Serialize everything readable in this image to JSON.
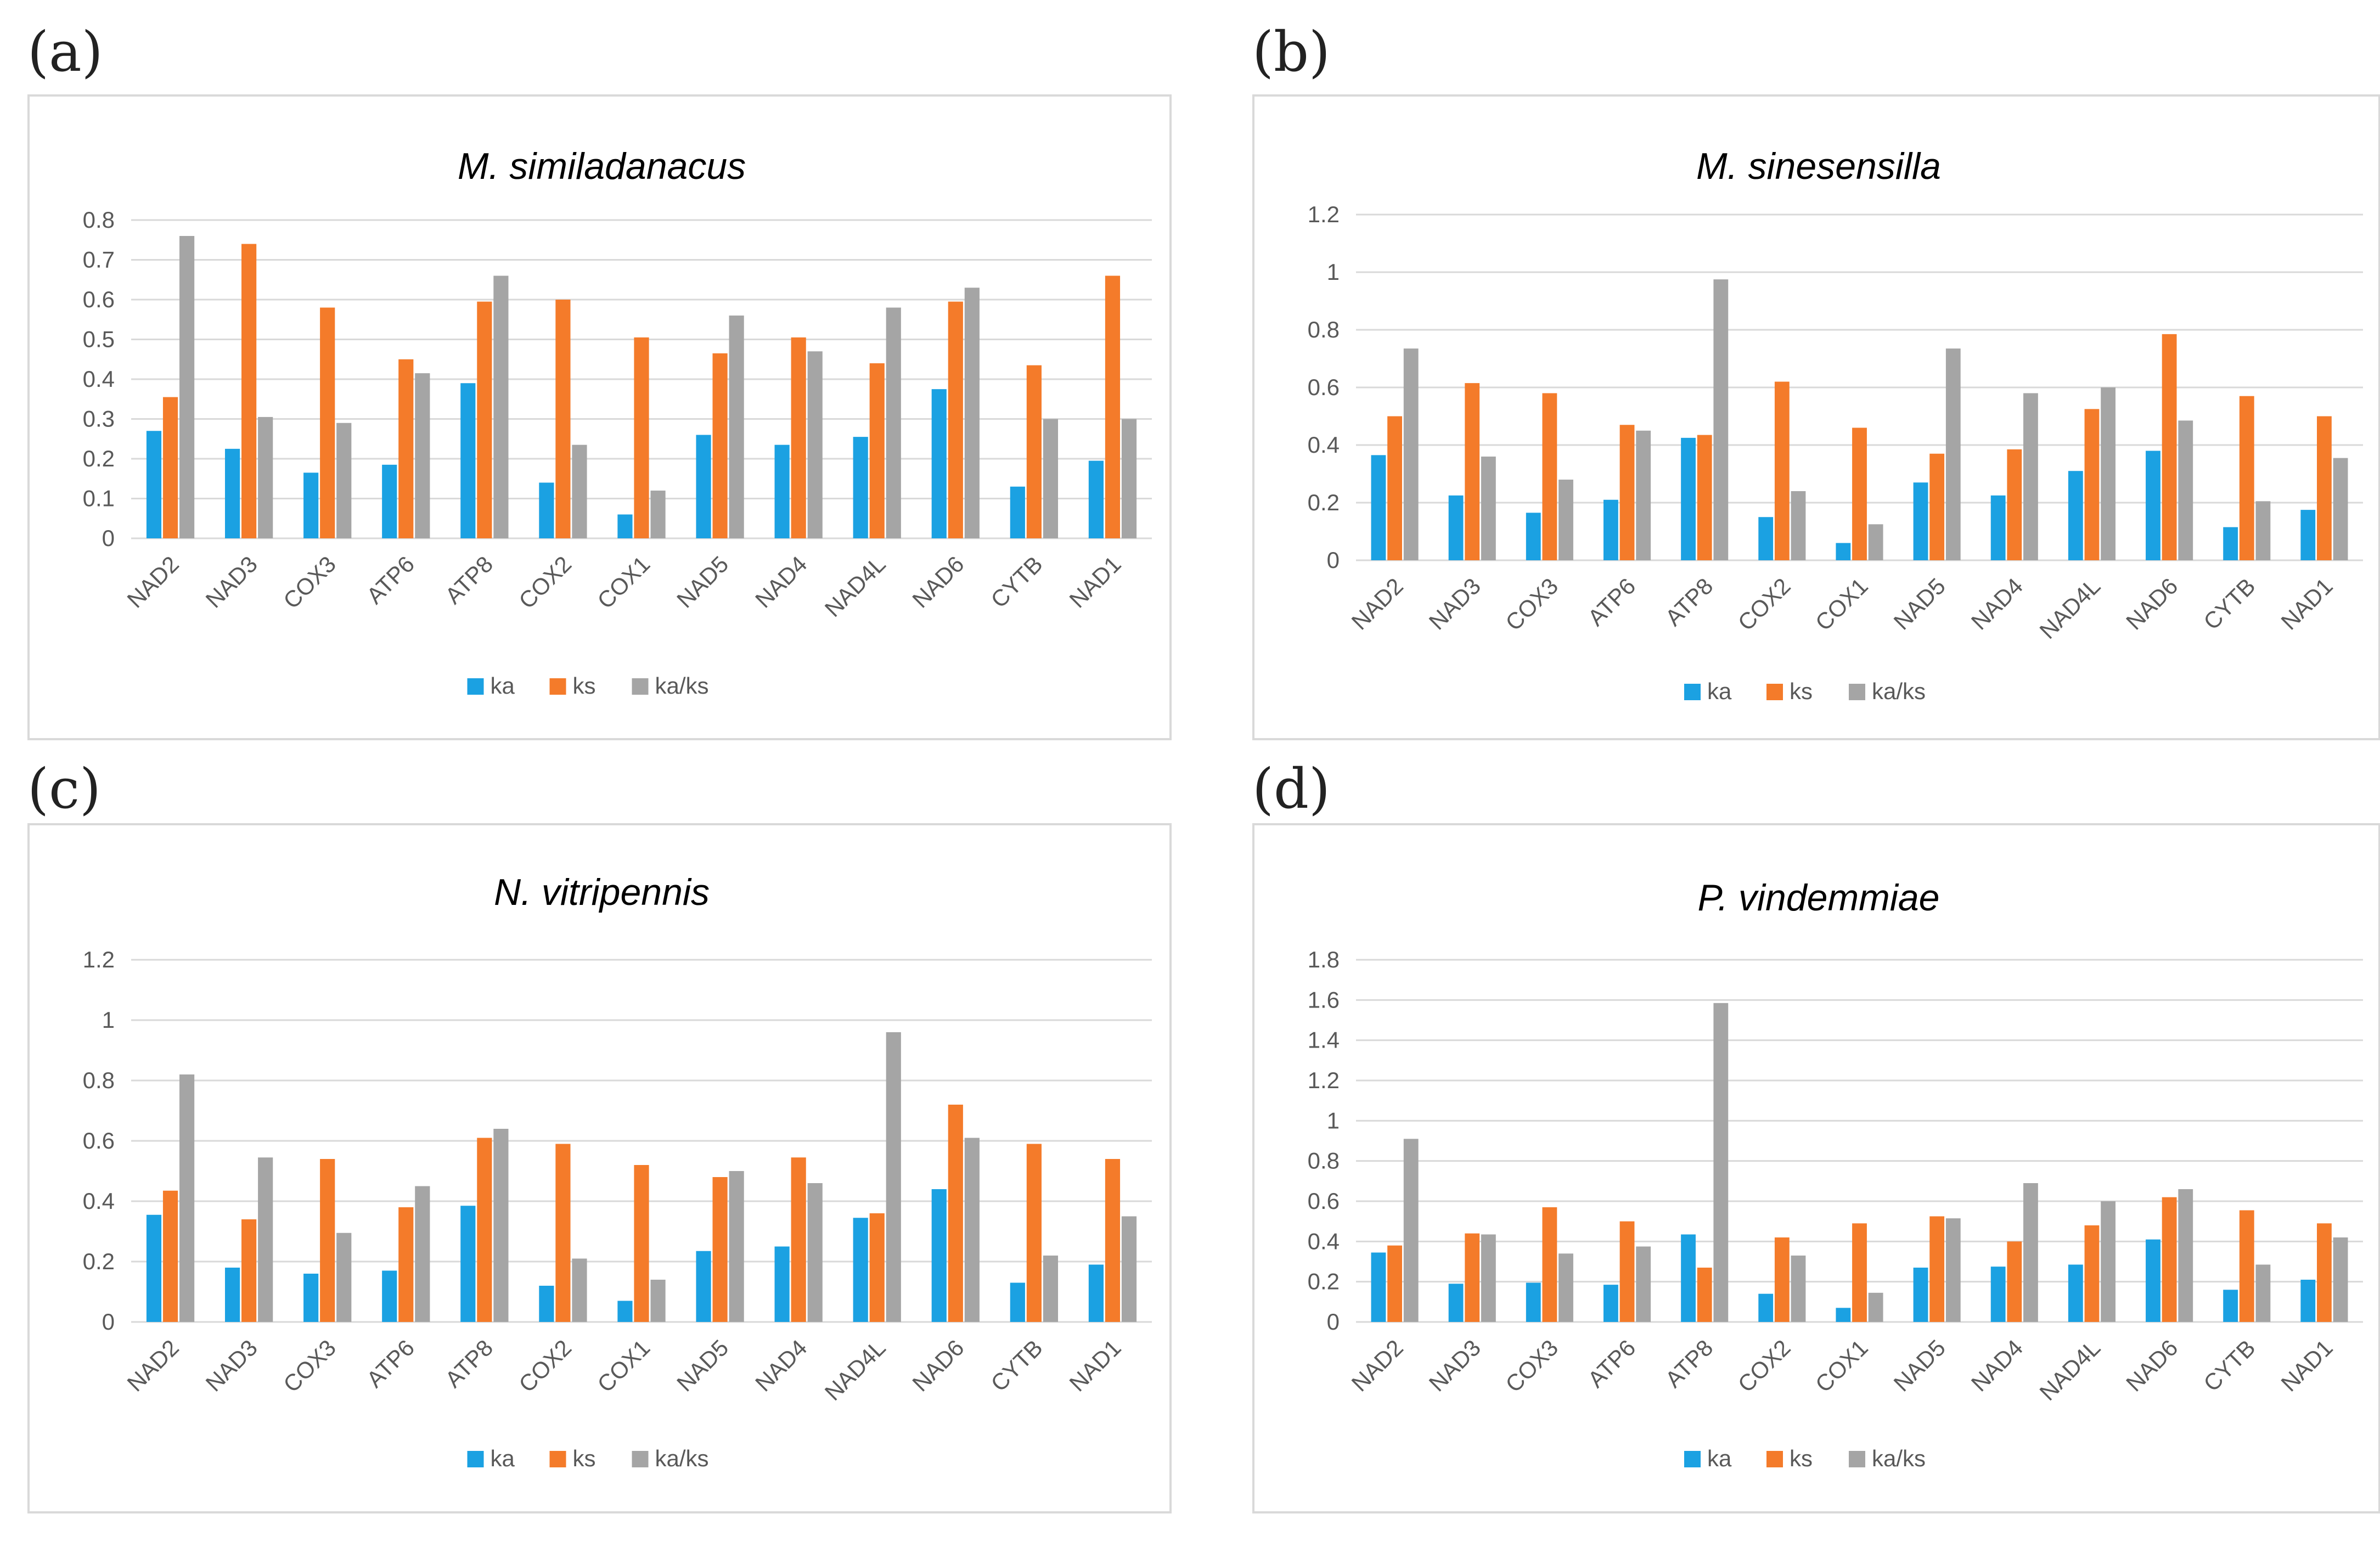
{
  "colors": {
    "ka": "#1ba1e2",
    "ks": "#f47b2a",
    "ratio": "#a5a5a5",
    "grid": "#d9d9d9",
    "text": "#595959",
    "title": "#000000"
  },
  "legend": [
    "ka",
    "ks",
    "ka/ks"
  ],
  "chart_data": [
    {
      "panel": "(a)",
      "type": "bar",
      "title": "M. similadanacus",
      "categories": [
        "NAD2",
        "NAD3",
        "COX3",
        "ATP6",
        "ATP8",
        "COX2",
        "COX1",
        "NAD5",
        "NAD4",
        "NAD4L",
        "NAD6",
        "CYTB",
        "NAD1"
      ],
      "yticks": [
        "0",
        "0.1",
        "0.2",
        "0.3",
        "0.4",
        "0.5",
        "0.6",
        "0.7",
        "0.8"
      ],
      "ylim": [
        0,
        0.8
      ],
      "series": [
        {
          "name": "ka",
          "values": [
            0.27,
            0.225,
            0.165,
            0.185,
            0.39,
            0.14,
            0.06,
            0.26,
            0.235,
            0.255,
            0.375,
            0.13,
            0.195
          ]
        },
        {
          "name": "ks",
          "values": [
            0.355,
            0.74,
            0.58,
            0.45,
            0.595,
            0.6,
            0.505,
            0.465,
            0.505,
            0.44,
            0.595,
            0.435,
            0.66
          ]
        },
        {
          "name": "ka/ks",
          "values": [
            0.76,
            0.305,
            0.29,
            0.415,
            0.66,
            0.235,
            0.12,
            0.56,
            0.47,
            0.58,
            0.63,
            0.3,
            0.3
          ]
        }
      ]
    },
    {
      "panel": "(b)",
      "type": "bar",
      "title": "M. sinesensilla",
      "categories": [
        "NAD2",
        "NAD3",
        "COX3",
        "ATP6",
        "ATP8",
        "COX2",
        "COX1",
        "NAD5",
        "NAD4",
        "NAD4L",
        "NAD6",
        "CYTB",
        "NAD1"
      ],
      "yticks": [
        "0",
        "0.2",
        "0.4",
        "0.6",
        "0.8",
        "1",
        "1.2"
      ],
      "ylim": [
        0,
        1.2
      ],
      "series": [
        {
          "name": "ka",
          "values": [
            0.365,
            0.225,
            0.165,
            0.21,
            0.425,
            0.15,
            0.06,
            0.27,
            0.225,
            0.31,
            0.38,
            0.115,
            0.175
          ]
        },
        {
          "name": "ks",
          "values": [
            0.5,
            0.615,
            0.58,
            0.47,
            0.435,
            0.62,
            0.46,
            0.37,
            0.385,
            0.525,
            0.785,
            0.57,
            0.5
          ]
        },
        {
          "name": "ka/ks",
          "values": [
            0.735,
            0.36,
            0.28,
            0.45,
            0.975,
            0.24,
            0.125,
            0.735,
            0.58,
            0.6,
            0.485,
            0.205,
            0.355
          ]
        }
      ]
    },
    {
      "panel": "(c)",
      "type": "bar",
      "title": "N. vitripennis",
      "categories": [
        "NAD2",
        "NAD3",
        "COX3",
        "ATP6",
        "ATP8",
        "COX2",
        "COX1",
        "NAD5",
        "NAD4",
        "NAD4L",
        "NAD6",
        "CYTB",
        "NAD1"
      ],
      "yticks": [
        "0",
        "0.2",
        "0.4",
        "0.6",
        "0.8",
        "1",
        "1.2"
      ],
      "ylim": [
        0,
        1.2
      ],
      "series": [
        {
          "name": "ka",
          "values": [
            0.355,
            0.18,
            0.16,
            0.17,
            0.385,
            0.12,
            0.07,
            0.235,
            0.25,
            0.345,
            0.44,
            0.13,
            0.19
          ]
        },
        {
          "name": "ks",
          "values": [
            0.435,
            0.34,
            0.54,
            0.38,
            0.61,
            0.59,
            0.52,
            0.48,
            0.545,
            0.36,
            0.72,
            0.59,
            0.54
          ]
        },
        {
          "name": "ka/ks",
          "values": [
            0.82,
            0.545,
            0.295,
            0.45,
            0.64,
            0.21,
            0.14,
            0.5,
            0.46,
            0.96,
            0.61,
            0.22,
            0.35
          ]
        }
      ]
    },
    {
      "panel": "(d)",
      "type": "bar",
      "title": "P. vindemmiae",
      "categories": [
        "NAD2",
        "NAD3",
        "COX3",
        "ATP6",
        "ATP8",
        "COX2",
        "COX1",
        "NAD5",
        "NAD4",
        "NAD4L",
        "NAD6",
        "CYTB",
        "NAD1"
      ],
      "yticks": [
        "0",
        "0.2",
        "0.4",
        "0.6",
        "0.8",
        "1",
        "1.2",
        "1.4",
        "1.6",
        "1.8"
      ],
      "ylim": [
        0,
        1.8
      ],
      "series": [
        {
          "name": "ka",
          "values": [
            0.345,
            0.19,
            0.195,
            0.185,
            0.435,
            0.14,
            0.07,
            0.27,
            0.275,
            0.285,
            0.41,
            0.16,
            0.21
          ]
        },
        {
          "name": "ks",
          "values": [
            0.38,
            0.44,
            0.57,
            0.5,
            0.27,
            0.42,
            0.49,
            0.525,
            0.4,
            0.48,
            0.62,
            0.555,
            0.49
          ]
        },
        {
          "name": "ka/ks",
          "values": [
            0.91,
            0.435,
            0.34,
            0.375,
            1.585,
            0.33,
            0.145,
            0.515,
            0.69,
            0.6,
            0.66,
            0.285,
            0.42
          ]
        }
      ]
    }
  ]
}
